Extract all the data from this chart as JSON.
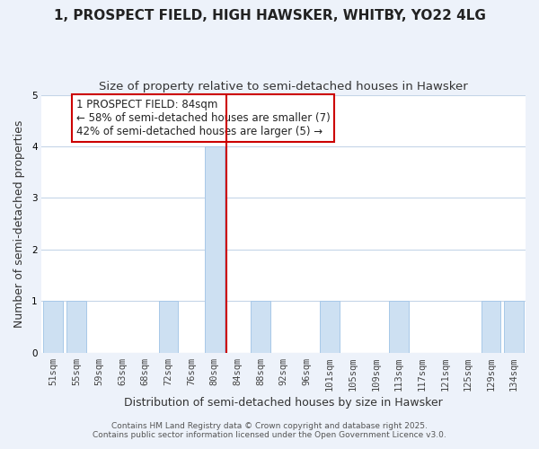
{
  "title": "1, PROSPECT FIELD, HIGH HAWSKER, WHITBY, YO22 4LG",
  "subtitle": "Size of property relative to semi-detached houses in Hawsker",
  "xlabel": "Distribution of semi-detached houses by size in Hawsker",
  "ylabel": "Number of semi-detached properties",
  "bins": [
    "51sqm",
    "55sqm",
    "59sqm",
    "63sqm",
    "68sqm",
    "72sqm",
    "76sqm",
    "80sqm",
    "84sqm",
    "88sqm",
    "92sqm",
    "96sqm",
    "101sqm",
    "105sqm",
    "109sqm",
    "113sqm",
    "117sqm",
    "121sqm",
    "125sqm",
    "129sqm",
    "134sqm"
  ],
  "values": [
    1,
    1,
    0,
    0,
    0,
    1,
    0,
    4,
    0,
    1,
    0,
    0,
    1,
    0,
    0,
    1,
    0,
    0,
    0,
    1,
    1
  ],
  "bar_color": "#cde0f2",
  "bar_edge_color": "#a8c8e8",
  "highlight_line_color": "#cc0000",
  "annotation_text": "1 PROSPECT FIELD: 84sqm\n← 58% of semi-detached houses are smaller (7)\n42% of semi-detached houses are larger (5) →",
  "annotation_box_color": "#ffffff",
  "annotation_box_edge_color": "#cc0000",
  "ylim": [
    0,
    5
  ],
  "yticks": [
    0,
    1,
    2,
    3,
    4,
    5
  ],
  "footer1": "Contains HM Land Registry data © Crown copyright and database right 2025.",
  "footer2": "Contains public sector information licensed under the Open Government Licence v3.0.",
  "background_color": "#edf2fa",
  "plot_background_color": "#ffffff",
  "grid_color": "#c5d5e8",
  "title_fontsize": 11,
  "subtitle_fontsize": 9.5,
  "axis_label_fontsize": 9,
  "tick_fontsize": 7.5,
  "annotation_fontsize": 8.5,
  "footer_fontsize": 6.5
}
